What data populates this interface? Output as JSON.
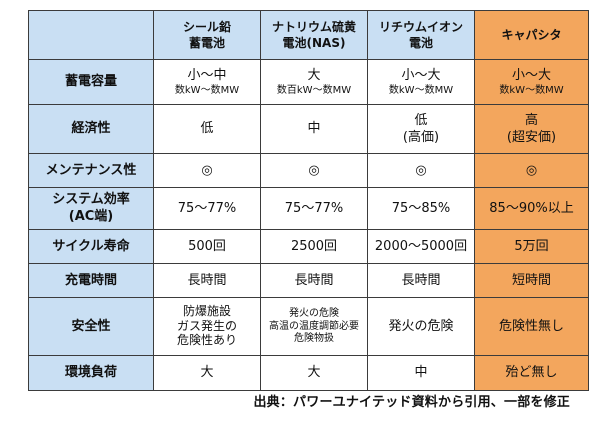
{
  "table": {
    "headers": [
      [
        "シール鉛",
        "蓄電池"
      ],
      [
        "ナトリウム硫黄",
        "電池(NAS)"
      ],
      [
        "リチウムイオン",
        "電池"
      ],
      [
        "キャパシタ"
      ]
    ],
    "rows": [
      {
        "label": "蓄電容量",
        "cells": [
          [
            "小～中",
            "数kW～数MW"
          ],
          [
            "大",
            "数百kW～数MW"
          ],
          [
            "小～大",
            "数kW～数MW"
          ],
          [
            "小～大",
            "数kW～数MW"
          ]
        ]
      },
      {
        "label": "経済性",
        "cells": [
          [
            "低"
          ],
          [
            "中"
          ],
          [
            "低",
            "(高価)"
          ],
          [
            "高",
            "(超安価)"
          ]
        ]
      },
      {
        "label": "メンテナンス性",
        "cells": [
          [
            "◎"
          ],
          [
            "◎"
          ],
          [
            "◎"
          ],
          [
            "◎"
          ]
        ]
      },
      {
        "label_lines": [
          "システム効率",
          "(AC端)"
        ],
        "cells": [
          [
            "75～77%"
          ],
          [
            "75～77%"
          ],
          [
            "75～85%"
          ],
          [
            "85～90%以上"
          ]
        ]
      },
      {
        "label": "サイクル寿命",
        "cells": [
          [
            "500回"
          ],
          [
            "2500回"
          ],
          [
            "2000～5000回"
          ],
          [
            "5万回"
          ]
        ]
      },
      {
        "label": "充電時間",
        "cells": [
          [
            "長時間"
          ],
          [
            "長時間"
          ],
          [
            "長時間"
          ],
          [
            "短時間"
          ]
        ]
      },
      {
        "label": "安全性",
        "cells": [
          [
            "防爆施設",
            "ガス発生の",
            "危険性あり"
          ],
          [
            "発火の危険",
            "高温の温度調節必要",
            "危険物扱"
          ],
          [
            "発火の危険"
          ],
          [
            "危険性無し"
          ]
        ]
      },
      {
        "label": "環境負荷",
        "cells": [
          [
            "大"
          ],
          [
            "大"
          ],
          [
            "中"
          ],
          [
            "殆ど無し"
          ]
        ]
      }
    ]
  },
  "footer": {
    "source": "出典：パワーユナイテッド資料から引用、一部を修正"
  },
  "colors": {
    "header_blue": "#c9dff3",
    "capacitor_orange": "#f3a65d",
    "border": "#3b3b3b"
  }
}
